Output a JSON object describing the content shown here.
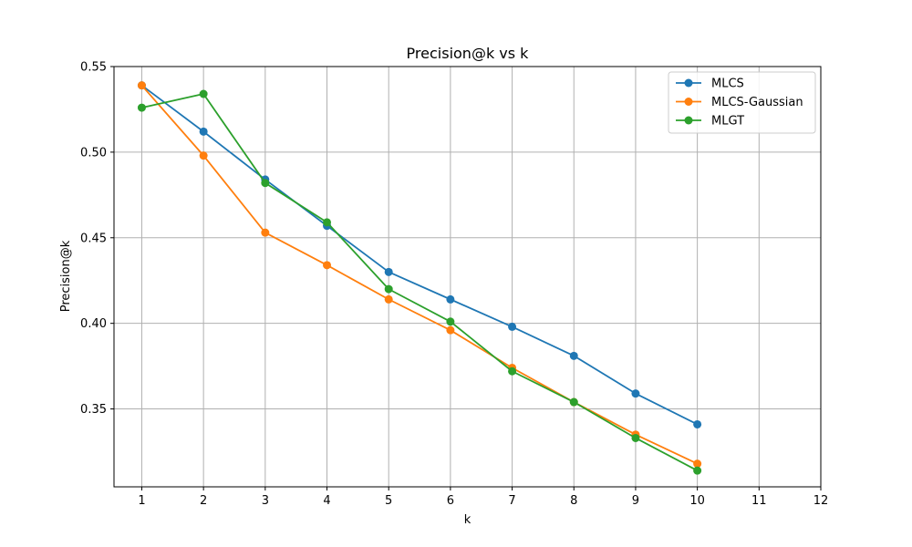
{
  "chart_data": {
    "type": "line",
    "title": "Precision@k vs k",
    "xlabel": "k",
    "ylabel": "Precision@k",
    "xlim": [
      0.55,
      12
    ],
    "ylim": [
      0.3045,
      0.55
    ],
    "x_ticks": [
      1,
      2,
      3,
      4,
      5,
      6,
      7,
      8,
      9,
      10,
      11,
      12
    ],
    "y_ticks": [
      0.35,
      0.4,
      0.45,
      0.5,
      0.55
    ],
    "y_tick_labels": [
      "0.35",
      "0.40",
      "0.45",
      "0.50",
      "0.55"
    ],
    "grid": true,
    "legend_position": "top-right",
    "x": [
      1,
      2,
      3,
      4,
      5,
      6,
      7,
      8,
      9,
      10
    ],
    "series": [
      {
        "name": "MLCS",
        "color": "#1f77b4",
        "marker": "circle",
        "values": [
          0.539,
          0.512,
          0.484,
          0.457,
          0.43,
          0.414,
          0.398,
          0.381,
          0.359,
          0.341
        ]
      },
      {
        "name": "MLCS-Gaussian",
        "color": "#ff7f0e",
        "marker": "circle",
        "values": [
          0.539,
          0.498,
          0.453,
          0.434,
          0.414,
          0.396,
          0.374,
          0.354,
          0.335,
          0.318
        ]
      },
      {
        "name": "MLGT",
        "color": "#2ca02c",
        "marker": "circle",
        "values": [
          0.526,
          0.534,
          0.482,
          0.459,
          0.42,
          0.401,
          0.372,
          0.354,
          0.333,
          0.314
        ]
      }
    ]
  }
}
